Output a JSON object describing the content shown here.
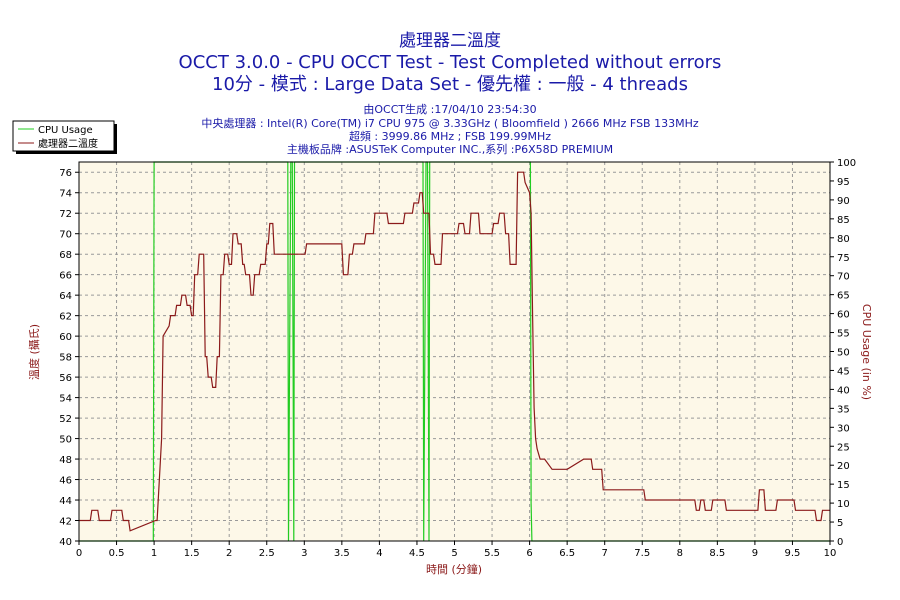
{
  "colors": {
    "title": "#1a1aa8",
    "plot_bg": "#fdf8e8",
    "grid": "#9a9a9a",
    "temp_line": "#8b1a1a",
    "usage_line": "#22cc22",
    "axis_title": "#8b1a1a"
  },
  "header": {
    "title_1": "處理器二溫度",
    "title_2": "OCCT 3.0.0 - CPU OCCT Test - Test Completed without errors",
    "title_3": "10分 - 模式 : Large Data Set - 優先權 : 一般 - 4 threads",
    "info": [
      "由OCCT生成 :17/04/10 23:54:30",
      "中央處理器 : Intel(R) Core(TM) i7 CPU 975 @ 3.33GHz ( Bloomfield ) 2666 MHz FSB 133MHz",
      "超頻 : 3999.86 MHz ; FSB 199.99MHz",
      "主機板品牌 :ASUSTeK Computer INC.,系列 :P6X58D PREMIUM"
    ]
  },
  "chart_data": {
    "type": "line",
    "xlabel": "時間 (分鐘)",
    "ylabel": "溫度 (攝氏)",
    "y2label": "CPU Usage (in %)",
    "xlim": [
      0,
      10
    ],
    "ylim": [
      40,
      77
    ],
    "y2lim": [
      0,
      100
    ],
    "x_ticks": [
      "0",
      "0.5",
      "1",
      "1.5",
      "2",
      "2.5",
      "3",
      "3.5",
      "4",
      "4.5",
      "5",
      "5.5",
      "6",
      "6.5",
      "7",
      "7.5",
      "8",
      "8.5",
      "9",
      "9.5",
      "10"
    ],
    "y_ticks": [
      "40",
      "42",
      "44",
      "46",
      "48",
      "50",
      "52",
      "54",
      "56",
      "58",
      "60",
      "62",
      "64",
      "66",
      "68",
      "70",
      "72",
      "74",
      "76"
    ],
    "y2_ticks": [
      "0",
      "5",
      "10",
      "15",
      "20",
      "25",
      "30",
      "35",
      "40",
      "45",
      "50",
      "55",
      "60",
      "65",
      "70",
      "75",
      "80",
      "85",
      "90",
      "95",
      "100"
    ],
    "grid": true,
    "legend_position": "top-left",
    "series": [
      {
        "name": "CPU Usage",
        "axis": "right",
        "x": [
          0,
          0.99,
          1.0,
          1.02,
          1.05,
          1.06,
          2.78,
          2.79,
          2.82,
          2.84,
          2.86,
          2.87,
          4.58,
          4.59,
          4.62,
          4.64,
          4.66,
          4.67,
          6.0,
          6.01,
          6.02,
          6.03,
          10
        ],
        "values": [
          0,
          0,
          100,
          100,
          100,
          100,
          100,
          0,
          100,
          100,
          0,
          100,
          100,
          0,
          100,
          100,
          0,
          100,
          100,
          100,
          10,
          0,
          0
        ]
      },
      {
        "name": "處理器二溫度",
        "axis": "left",
        "x": [
          0,
          0.15,
          0.17,
          0.25,
          0.27,
          0.42,
          0.44,
          0.57,
          0.59,
          0.66,
          0.68,
          1.02,
          1.04,
          1.1,
          1.12,
          1.2,
          1.22,
          1.28,
          1.3,
          1.35,
          1.37,
          1.42,
          1.44,
          1.48,
          1.5,
          1.52,
          1.54,
          1.58,
          1.6,
          1.66,
          1.68,
          1.7,
          1.72,
          1.76,
          1.78,
          1.82,
          1.84,
          1.87,
          1.89,
          1.92,
          1.94,
          1.98,
          2.0,
          2.03,
          2.05,
          2.1,
          2.12,
          2.16,
          2.18,
          2.2,
          2.22,
          2.27,
          2.29,
          2.32,
          2.34,
          2.4,
          2.42,
          2.48,
          2.5,
          2.52,
          2.54,
          2.58,
          2.6,
          3.01,
          3.03,
          3.38,
          3.4,
          3.5,
          3.52,
          3.58,
          3.6,
          3.64,
          3.66,
          3.8,
          3.82,
          3.92,
          3.94,
          4.1,
          4.12,
          4.32,
          4.34,
          4.44,
          4.46,
          4.52,
          4.54,
          4.57,
          4.59,
          4.66,
          4.68,
          4.72,
          4.74,
          4.82,
          4.84,
          5.04,
          5.06,
          5.12,
          5.14,
          5.2,
          5.22,
          5.32,
          5.34,
          5.5,
          5.52,
          5.58,
          5.6,
          5.66,
          5.68,
          5.72,
          5.74,
          5.82,
          5.84,
          5.92,
          5.94,
          6.0,
          6.02,
          6.04,
          6.06,
          6.08,
          6.1,
          6.14,
          6.2,
          6.3,
          6.4,
          6.5,
          6.72,
          6.82,
          6.84,
          6.96,
          6.98,
          7.02,
          7.04,
          7.52,
          7.54,
          7.98,
          8.0,
          8.12,
          8.14,
          8.2,
          8.22,
          8.26,
          8.28,
          8.32,
          8.34,
          8.42,
          8.44,
          8.54,
          8.56,
          8.6,
          8.62,
          9.04,
          9.06,
          9.12,
          9.14,
          9.2,
          9.22,
          9.28,
          9.3,
          9.52,
          9.54,
          9.6,
          9.62,
          9.8,
          9.82,
          9.88,
          9.9,
          9.92,
          9.94,
          10
        ],
        "values": [
          42,
          42,
          43,
          43,
          42,
          42,
          43,
          43,
          42,
          42,
          41,
          42,
          42,
          50,
          60,
          61,
          62,
          62,
          63,
          63,
          64,
          64,
          63,
          63,
          62,
          62,
          66,
          66,
          68,
          68,
          58,
          58,
          56,
          56,
          55,
          55,
          58,
          58,
          66,
          66,
          68,
          68,
          67,
          67,
          70,
          70,
          69,
          69,
          67,
          67,
          66,
          66,
          64,
          64,
          66,
          66,
          67,
          67,
          69,
          69,
          71,
          71,
          68,
          68,
          69,
          69,
          69,
          69,
          66,
          66,
          68,
          68,
          69,
          69,
          70,
          70,
          72,
          72,
          71,
          71,
          72,
          72,
          73,
          73,
          74,
          74,
          72,
          72,
          68,
          68,
          67,
          67,
          70,
          70,
          71,
          71,
          70,
          70,
          72,
          72,
          70,
          70,
          71,
          71,
          72,
          72,
          70,
          70,
          67,
          67,
          76,
          76,
          75,
          74,
          72,
          62,
          53,
          50,
          49,
          48,
          48,
          47,
          47,
          47,
          48,
          48,
          47,
          47,
          45,
          45,
          45,
          45,
          44,
          44,
          44,
          44,
          44,
          44,
          43,
          43,
          44,
          44,
          43,
          43,
          44,
          44,
          44,
          44,
          43,
          43,
          45,
          45,
          43,
          43,
          43,
          43,
          44,
          44,
          43,
          43,
          43,
          43,
          42,
          42,
          43,
          43,
          43,
          43
        ]
      }
    ]
  }
}
